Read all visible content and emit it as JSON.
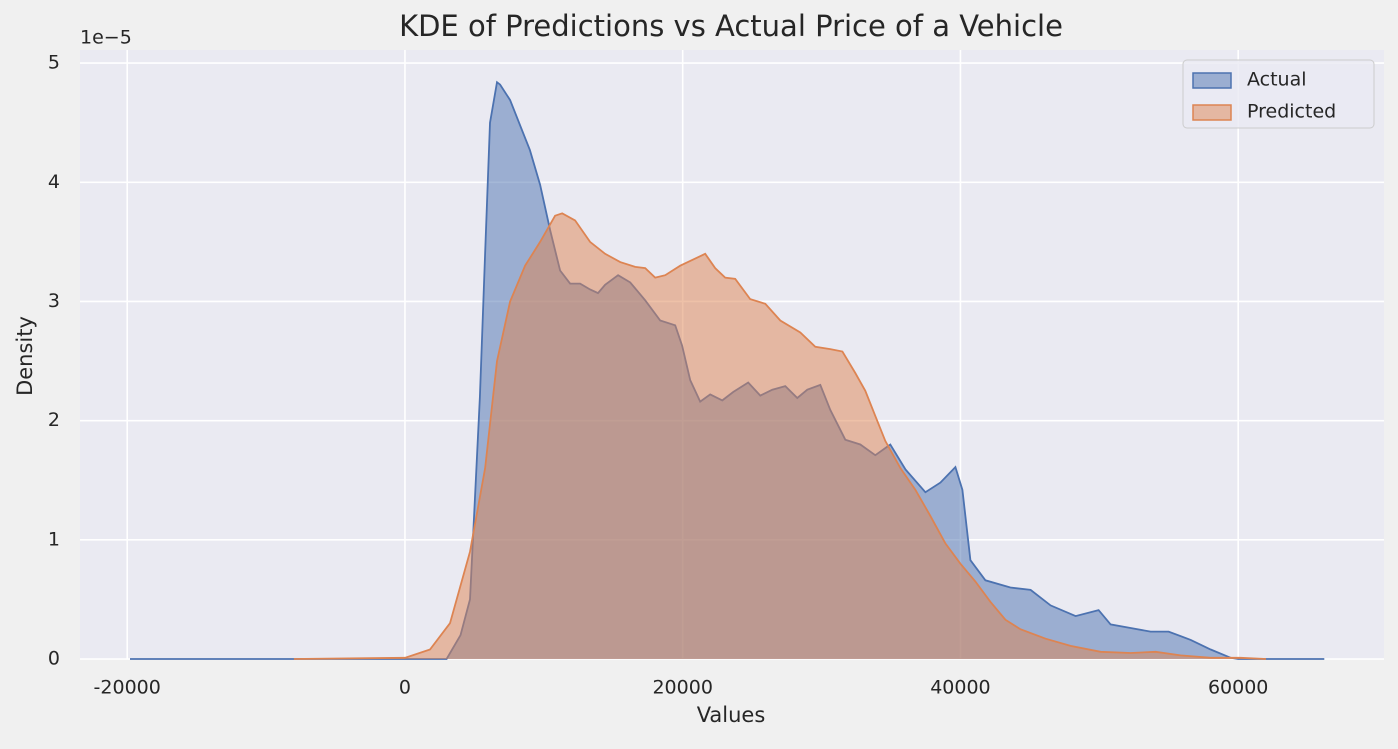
{
  "chart_data": {
    "type": "area",
    "title": "KDE of Predictions vs Actual Price of a Vehicle",
    "xlabel": "Values",
    "ylabel": "Density",
    "y_offset_label": "1e−5",
    "xlim": [
      -23400,
      70500
    ],
    "ylim": [
      0,
      5.11
    ],
    "xticks": [
      -20000,
      0,
      20000,
      40000,
      60000
    ],
    "yticks": [
      0,
      1,
      2,
      3,
      4,
      5
    ],
    "grid": true,
    "legend": "upper right",
    "alpha": 0.5,
    "series": [
      {
        "name": "Actual",
        "color": "#4c72b0",
        "x": [
          -19800,
          3000,
          4000,
          4685,
          5400,
          5770,
          6126,
          6630,
          6850,
          7570,
          9000,
          9730,
          10450,
          11170,
          11890,
          12610,
          13330,
          13900,
          14410,
          15350,
          16220,
          17300,
          18380,
          19460,
          19960,
          20540,
          21260,
          21980,
          22850,
          23640,
          24720,
          25590,
          26450,
          27390,
          28250,
          28970,
          29910,
          30630,
          31710,
          32790,
          33870,
          34950,
          36040,
          37480,
          38560,
          39640,
          40140,
          40720,
          41800,
          43600,
          45050,
          46490,
          48290,
          49950,
          50810,
          52250,
          53690,
          54990,
          56580,
          58020,
          59460,
          60000,
          66200
        ],
        "values": [
          0,
          0,
          0.2,
          0.5,
          2.2,
          3.4,
          4.5,
          4.84,
          4.82,
          4.69,
          4.27,
          3.98,
          3.6,
          3.26,
          3.15,
          3.15,
          3.1,
          3.07,
          3.14,
          3.22,
          3.16,
          3.01,
          2.84,
          2.8,
          2.63,
          2.34,
          2.16,
          2.22,
          2.17,
          2.24,
          2.32,
          2.21,
          2.26,
          2.29,
          2.19,
          2.26,
          2.3,
          2.09,
          1.84,
          1.8,
          1.71,
          1.8,
          1.59,
          1.4,
          1.48,
          1.61,
          1.42,
          0.83,
          0.66,
          0.6,
          0.58,
          0.45,
          0.36,
          0.41,
          0.29,
          0.26,
          0.23,
          0.23,
          0.16,
          0.08,
          0.01,
          0,
          0
        ]
      },
      {
        "name": "Predicted",
        "color": "#dd8452",
        "x": [
          -8000,
          0,
          1800,
          3240,
          4680,
          5770,
          6630,
          7570,
          8650,
          9730,
          10810,
          11320,
          12250,
          13330,
          14410,
          15500,
          16580,
          17300,
          18020,
          18740,
          19820,
          20900,
          21620,
          22340,
          23060,
          23780,
          24860,
          25950,
          27030,
          28470,
          29550,
          30630,
          31500,
          32430,
          33150,
          33870,
          34590,
          35680,
          36760,
          37840,
          38920,
          40000,
          41080,
          42160,
          43240,
          44320,
          46130,
          47930,
          50090,
          52250,
          54050,
          55850,
          58020,
          60180,
          62000
        ],
        "values": [
          0,
          0.01,
          0.08,
          0.3,
          0.9,
          1.6,
          2.5,
          3.0,
          3.3,
          3.5,
          3.72,
          3.74,
          3.68,
          3.5,
          3.4,
          3.33,
          3.29,
          3.28,
          3.2,
          3.22,
          3.3,
          3.36,
          3.4,
          3.28,
          3.2,
          3.19,
          3.02,
          2.98,
          2.84,
          2.74,
          2.62,
          2.6,
          2.58,
          2.4,
          2.25,
          2.04,
          1.83,
          1.6,
          1.42,
          1.2,
          0.97,
          0.8,
          0.65,
          0.48,
          0.33,
          0.25,
          0.17,
          0.11,
          0.06,
          0.05,
          0.06,
          0.03,
          0.01,
          0.01,
          0
        ]
      }
    ]
  }
}
